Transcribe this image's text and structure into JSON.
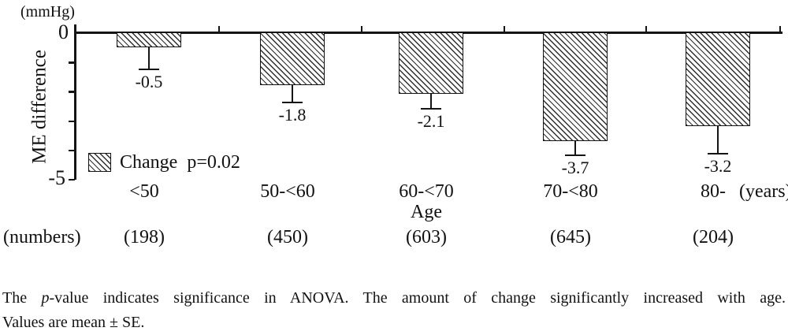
{
  "figure": {
    "background": "#ffffff",
    "ink_color": "#141414",
    "hatch_line_color": "#2f2f2f"
  },
  "chart_data": {
    "type": "bar",
    "title": "",
    "ylabel": "ME difference",
    "y_axis_unit": "(mmHg)",
    "xlabel": "Age",
    "x_axis_unit": "(years)",
    "categories": [
      "<50",
      "50-<60",
      "60-<70",
      "70-<80",
      "80-"
    ],
    "values": [
      -0.5,
      -1.8,
      -2.1,
      -3.7,
      -3.2
    ],
    "value_labels": [
      "-0.5",
      "-1.8",
      "-2.1",
      "-3.7",
      "-3.2"
    ],
    "se": [
      0.75,
      0.6,
      0.5,
      0.5,
      0.95
    ],
    "error_bars": "below, mean - SE, T-cap",
    "counts_row_label": "(numbers)",
    "counts": [
      "(198)",
      "(450)",
      "(603)",
      "(645)",
      "(204)"
    ],
    "legend": "Change  p=0.02",
    "legend_position": "inside lower-left",
    "bar_style": "diagonal-hatch",
    "ylim": [
      -5,
      0
    ],
    "ytick_shown": [
      "0",
      "-5"
    ],
    "yticks_minor_every": 1,
    "grid": false
  },
  "caption": {
    "line1_prefix": "The ",
    "line1_italic": "p",
    "line1_rest": "-value indicates significance in ANOVA. The amount of change significantly increased with age.",
    "line2": "Values are mean ± SE."
  }
}
